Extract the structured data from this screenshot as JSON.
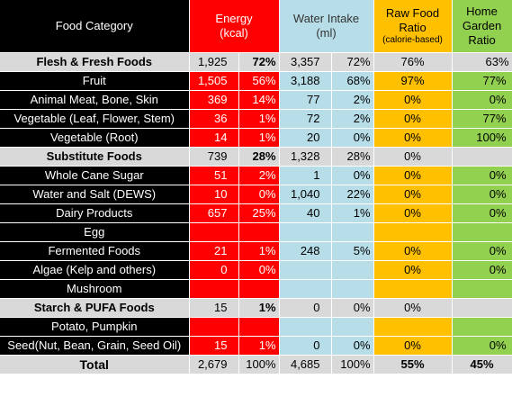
{
  "headers": {
    "category": "Food Category",
    "energy_line1": "Energy",
    "energy_line2": "(kcal)",
    "water_line1": "Water Intake",
    "water_line2": "(ml)",
    "raw_line1": "Raw Food",
    "raw_line2": "Ratio",
    "raw_line3": "(calorie-based)",
    "garden_line1": "Home",
    "garden_line2": "Garden",
    "garden_line3": "Ratio"
  },
  "rows": [
    {
      "kind": "group",
      "name": "Flesh & Fresh Foods",
      "energy": "1,925",
      "energy_pct": "72%",
      "water": "3,357",
      "water_pct": "72%",
      "raw": "76%",
      "garden": "63%"
    },
    {
      "kind": "item",
      "name": "Fruit",
      "energy": "1,505",
      "energy_pct": "56%",
      "water": "3,188",
      "water_pct": "68%",
      "raw": "97%",
      "garden": "77%"
    },
    {
      "kind": "item",
      "name": "Animal Meat, Bone, Skin",
      "energy": "369",
      "energy_pct": "14%",
      "water": "77",
      "water_pct": "2%",
      "raw": "0%",
      "garden": "0%"
    },
    {
      "kind": "item",
      "name": "Vegetable (Leaf, Flower, Stem)",
      "energy": "36",
      "energy_pct": "1%",
      "water": "72",
      "water_pct": "2%",
      "raw": "0%",
      "garden": "77%"
    },
    {
      "kind": "item",
      "name": "Vegetable (Root)",
      "energy": "14",
      "energy_pct": "1%",
      "water": "20",
      "water_pct": "0%",
      "raw": "0%",
      "garden": "100%"
    },
    {
      "kind": "group",
      "name": "Substitute Foods",
      "energy": "739",
      "energy_pct": "28%",
      "water": "1,328",
      "water_pct": "28%",
      "raw": "0%",
      "garden": ""
    },
    {
      "kind": "item",
      "name": "Whole Cane Sugar",
      "energy": "51",
      "energy_pct": "2%",
      "water": "1",
      "water_pct": "0%",
      "raw": "0%",
      "garden": "0%"
    },
    {
      "kind": "item",
      "name": "Water and Salt (DEWS)",
      "energy": "10",
      "energy_pct": "0%",
      "water": "1,040",
      "water_pct": "22%",
      "raw": "0%",
      "garden": "0%"
    },
    {
      "kind": "item",
      "name": "Dairy Products",
      "energy": "657",
      "energy_pct": "25%",
      "water": "40",
      "water_pct": "1%",
      "raw": "0%",
      "garden": "0%"
    },
    {
      "kind": "item",
      "name": "Egg",
      "energy": "",
      "energy_pct": "",
      "water": "",
      "water_pct": "",
      "raw": "",
      "garden": ""
    },
    {
      "kind": "item",
      "name": "Fermented Foods",
      "energy": "21",
      "energy_pct": "1%",
      "water": "248",
      "water_pct": "5%",
      "raw": "0%",
      "garden": "0%"
    },
    {
      "kind": "item",
      "name": "Algae (Kelp and others)",
      "energy": "0",
      "energy_pct": "0%",
      "water": "",
      "water_pct": "",
      "raw": "0%",
      "garden": "0%"
    },
    {
      "kind": "item",
      "name": "Mushroom",
      "energy": "",
      "energy_pct": "",
      "water": "",
      "water_pct": "",
      "raw": "",
      "garden": ""
    },
    {
      "kind": "group",
      "name": "Starch & PUFA Foods",
      "energy": "15",
      "energy_pct": "1%",
      "water": "0",
      "water_pct": "0%",
      "raw": "0%",
      "garden": ""
    },
    {
      "kind": "item",
      "name": "Potato, Pumpkin",
      "energy": "",
      "energy_pct": "",
      "water": "",
      "water_pct": "",
      "raw": "",
      "garden": ""
    },
    {
      "kind": "item",
      "name": "Seed(Nut, Bean, Grain, Seed Oil)",
      "energy": "15",
      "energy_pct": "1%",
      "water": "0",
      "water_pct": "0%",
      "raw": "0%",
      "garden": "0%"
    },
    {
      "kind": "total",
      "name": "Total",
      "energy": "2,679",
      "energy_pct": "100%",
      "water": "4,685",
      "water_pct": "100%",
      "raw": "55%",
      "garden": "45%"
    }
  ],
  "colors": {
    "category_bg": "#000000",
    "energy_bg": "#ff0000",
    "water_bg": "#b7dde8",
    "raw_bg": "#ffc000",
    "garden_bg": "#92d050",
    "group_bg": "#d9d9d9"
  }
}
